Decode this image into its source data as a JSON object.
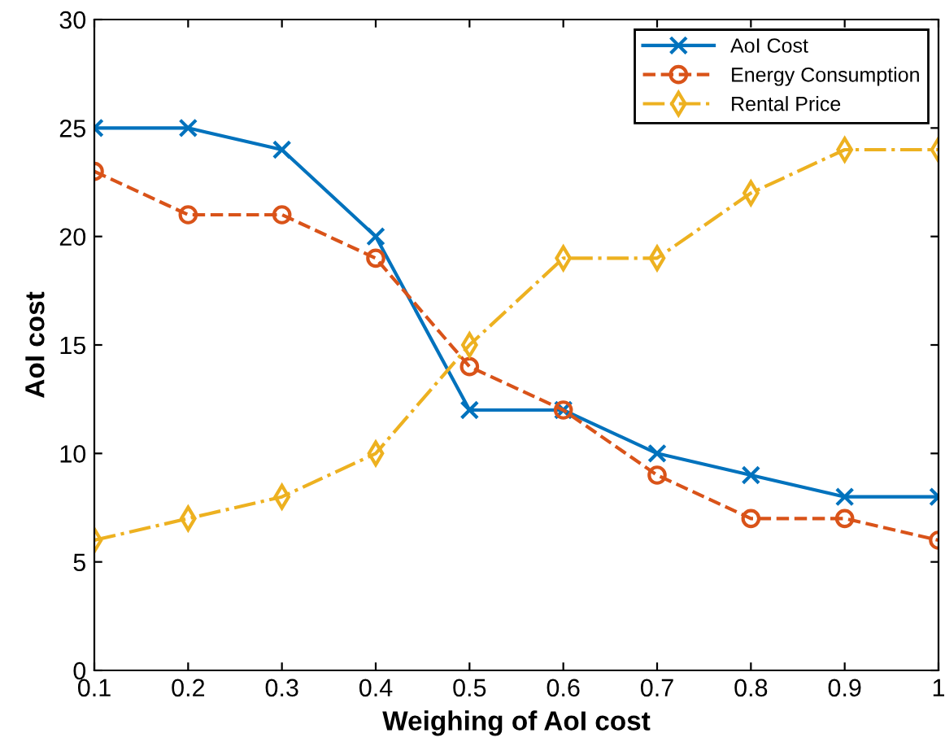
{
  "chart_data": {
    "type": "line",
    "xlabel": "Weighing of AoI cost",
    "ylabel": "AoI cost",
    "x": [
      0.1,
      0.2,
      0.3,
      0.4,
      0.5,
      0.6,
      0.7,
      0.8,
      0.9,
      1
    ],
    "series": [
      {
        "name": "AoI Cost",
        "color": "#0072bd",
        "marker": "cross",
        "line_style": "solid",
        "values": [
          25,
          25,
          24,
          20,
          12,
          12,
          10,
          9,
          8,
          8
        ]
      },
      {
        "name": "Energy Consumption",
        "color": "#d95319",
        "marker": "circle",
        "line_style": "dashed",
        "values": [
          23,
          21,
          21,
          19,
          14,
          12,
          9,
          7,
          7,
          6
        ]
      },
      {
        "name": "Rental Price",
        "color": "#edb120",
        "marker": "diamond",
        "line_style": "dashdot",
        "values": [
          6,
          7,
          8,
          10,
          15,
          19,
          19,
          22,
          24,
          24
        ]
      }
    ],
    "xlim": [
      0.1,
      1
    ],
    "xticks": [
      0.1,
      0.2,
      0.3,
      0.4,
      0.5,
      0.6,
      0.7,
      0.8,
      0.9,
      1
    ],
    "ylim": [
      0,
      30
    ],
    "yticks": [
      0,
      5,
      10,
      15,
      20,
      25,
      30
    ],
    "legend": "top right",
    "grid": false
  }
}
